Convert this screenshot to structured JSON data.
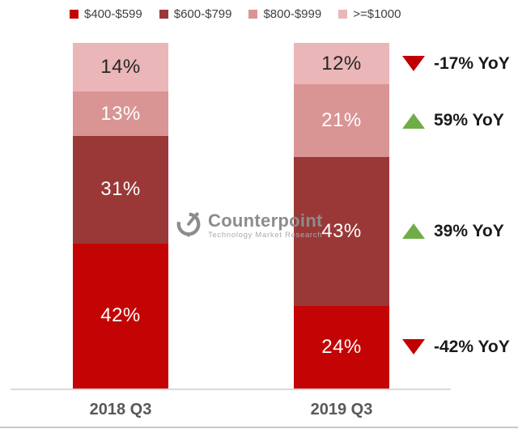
{
  "watermark": {
    "brand": "Counterpoint",
    "tagline": "Technology Market Research"
  },
  "chart_data": {
    "type": "bar",
    "subtype": "stacked-100pct-column",
    "title": "",
    "unit": "%",
    "categories": [
      "2018 Q3",
      "2019 Q3"
    ],
    "series": [
      {
        "name": "$400-$599",
        "color": "#c40404",
        "label_color": "#ffffff",
        "values": [
          42,
          24
        ]
      },
      {
        "name": "$600-$799",
        "color": "#9a3838",
        "label_color": "#ffffff",
        "values": [
          31,
          43
        ]
      },
      {
        "name": "$800-$999",
        "color": "#d99494",
        "label_color": "#ffffff",
        "values": [
          13,
          21
        ]
      },
      {
        "name": ">=$1000",
        "color": "#ebb6b8",
        "label_color": "#262626",
        "values": [
          14,
          12
        ]
      }
    ],
    "stack_order_bottom_to_top": [
      "$400-$599",
      "$600-$799",
      "$800-$999",
      ">=$1000"
    ],
    "data_labels": {
      "2018 Q3": [
        "42%",
        "31%",
        "13%",
        "14%"
      ],
      "2019 Q3": [
        "24%",
        "43%",
        "21%",
        "12%"
      ]
    },
    "annotations": [
      {
        "text": "-17% YoY",
        "direction": "down",
        "color": "#c00000",
        "aligned_segment": ">=$1000"
      },
      {
        "text": "59% YoY",
        "direction": "up",
        "color": "#70ad47",
        "aligned_segment": "$800-$999"
      },
      {
        "text": "39% YoY",
        "direction": "up",
        "color": "#70ad47",
        "aligned_segment": "$600-$799"
      },
      {
        "text": "-42% YoY",
        "direction": "down",
        "color": "#c00000",
        "aligned_segment": "$400-$599"
      }
    ],
    "legend_position": "top",
    "ylim": [
      0,
      100
    ],
    "grid": false,
    "axis_line_color": "#d9d9d9"
  }
}
